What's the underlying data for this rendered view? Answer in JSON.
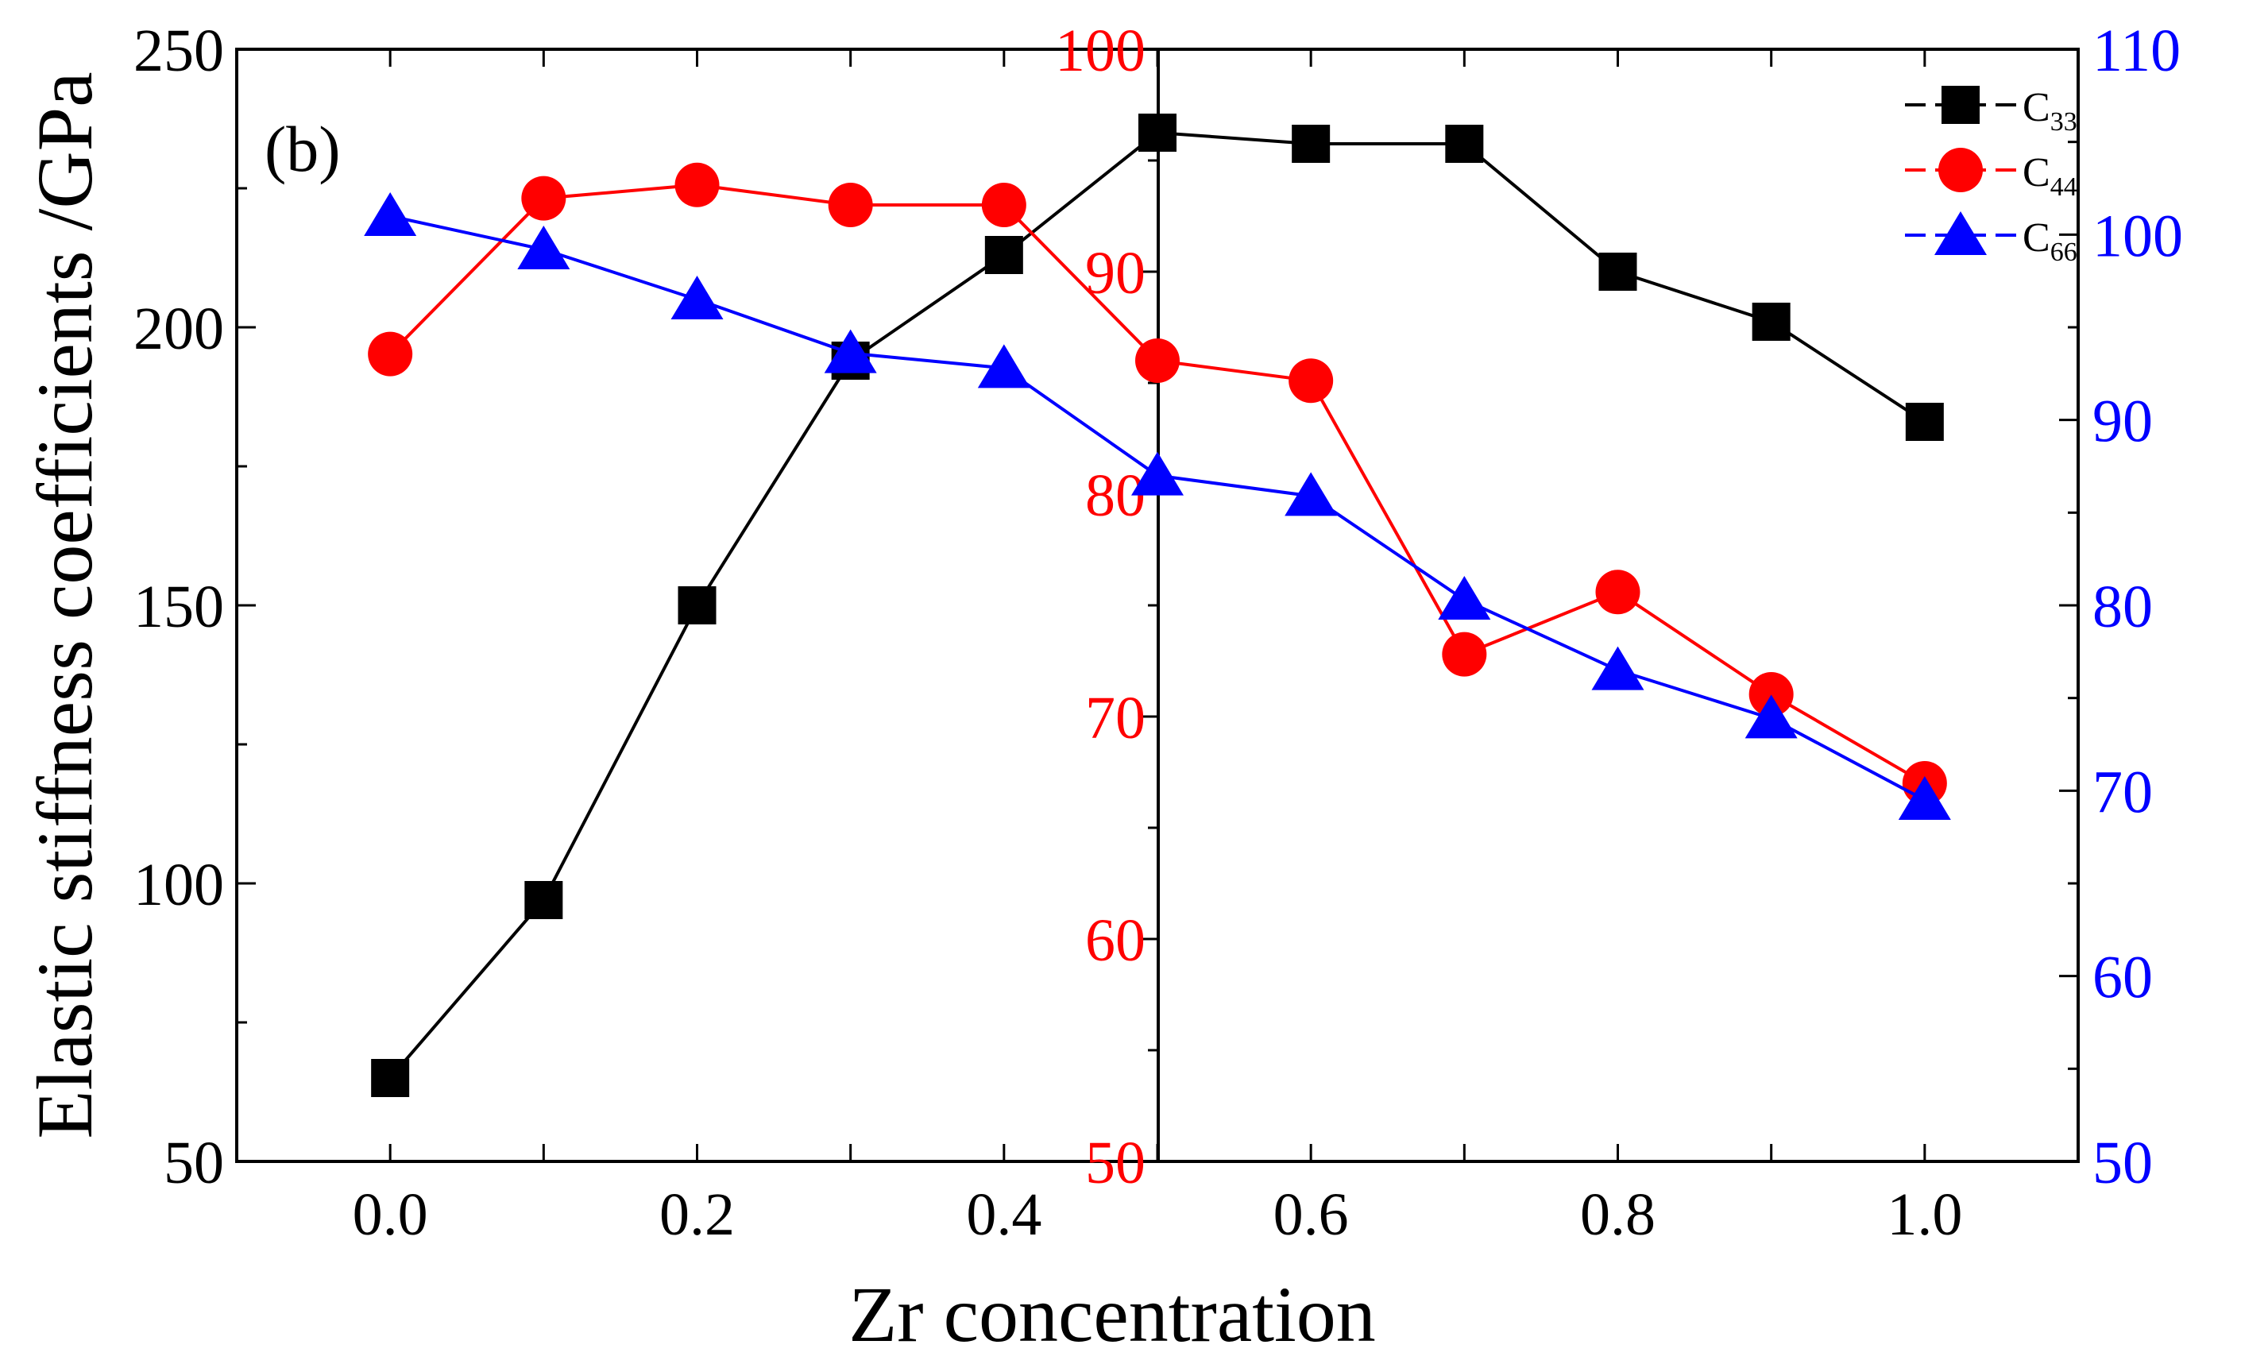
{
  "chart_data": {
    "type": "line",
    "panel_label": "(b)",
    "xlabel": "Zr concentration",
    "ylabel": "Elastic stiffness coefficients /GPa",
    "x": [
      0.0,
      0.1,
      0.2,
      0.3,
      0.4,
      0.5,
      0.6,
      0.7,
      0.8,
      0.9,
      1.0
    ],
    "x_ticks": [
      "0.0",
      "0.2",
      "0.4",
      "0.6",
      "0.8",
      "1.0"
    ],
    "xlim": [
      -0.1,
      1.1
    ],
    "axes": {
      "left": {
        "ylim": [
          50,
          250
        ],
        "ticks": [
          "50",
          "100",
          "150",
          "200",
          "250"
        ],
        "color": "#000000"
      },
      "middle": {
        "ylim": [
          50,
          100
        ],
        "ticks": [
          "50",
          "60",
          "70",
          "80",
          "90",
          "100"
        ],
        "color": "#ff0000"
      },
      "right": {
        "ylim": [
          50,
          110
        ],
        "ticks": [
          "50",
          "60",
          "70",
          "80",
          "90",
          "100",
          "110"
        ],
        "color": "#0000ff"
      }
    },
    "series": [
      {
        "name": "C",
        "sub": "33",
        "axis": "left",
        "marker": "square",
        "color": "#000000",
        "values": [
          65,
          97,
          150,
          194,
          213,
          235,
          233,
          233,
          210,
          201,
          183
        ]
      },
      {
        "name": "C",
        "sub": "44",
        "axis": "middle",
        "marker": "circle",
        "color": "#ff0000",
        "values": [
          86.3,
          93.3,
          93.9,
          93.0,
          93.0,
          86.0,
          85.1,
          72.8,
          75.6,
          71.0,
          67.0
        ]
      },
      {
        "name": "C",
        "sub": "66",
        "axis": "right",
        "marker": "triangle",
        "color": "#0000ff",
        "values": [
          101.0,
          99.2,
          96.5,
          93.6,
          92.8,
          87.0,
          85.9,
          80.3,
          76.5,
          73.9,
          69.5
        ]
      }
    ],
    "legend": {
      "position": "top-right"
    }
  }
}
